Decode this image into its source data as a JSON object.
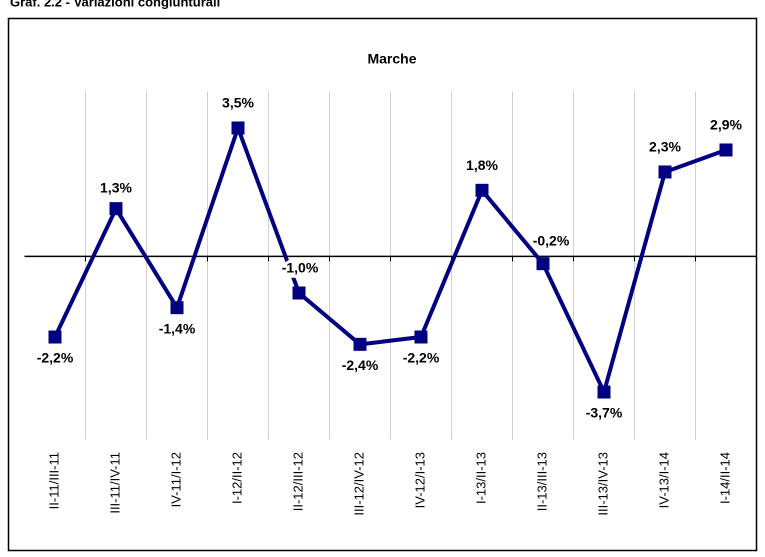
{
  "chart_data": {
    "type": "line",
    "title": "Marche",
    "heading": "Graf. 2.2 - Variazioni congiunturali",
    "categories": [
      "II-11/III-11",
      "III-11/IV-11",
      "IV-11/I-12",
      "I-12/II-12",
      "II-12/III-12",
      "III-12/IV-12",
      "IV-12/I-13",
      "I-13/II-13",
      "II-13/III-13",
      "III-13/IV-13",
      "IV-13/I-14",
      "I-14/II-14"
    ],
    "values": [
      -2.2,
      1.3,
      -1.4,
      3.5,
      -1.0,
      -2.4,
      -2.2,
      1.8,
      -0.2,
      -3.7,
      2.3,
      2.9
    ],
    "value_labels": [
      "-2,2%",
      "1,3%",
      "-1,4%",
      "3,5%",
      "-1,0%",
      "-2,4%",
      "-2,2%",
      "1,8%",
      "-0,2%",
      "-3,7%",
      "2,3%",
      "2,9%"
    ],
    "color": "#000080",
    "ylim": [
      -5,
      4.5
    ]
  }
}
